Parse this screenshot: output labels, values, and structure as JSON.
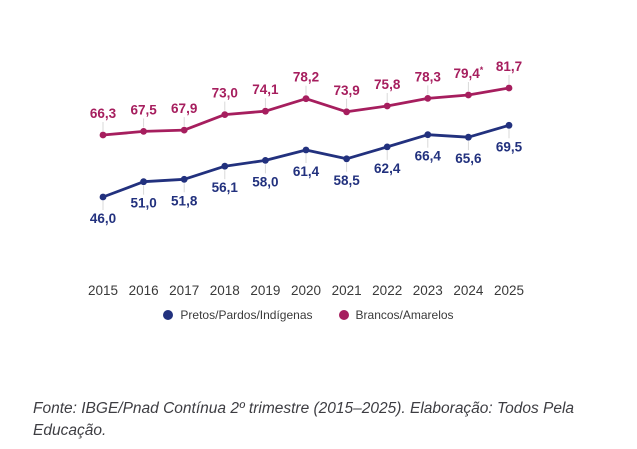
{
  "chart_data": {
    "type": "line",
    "categories": [
      "2015",
      "2016",
      "2017",
      "2018",
      "2019",
      "2020",
      "2021",
      "2022",
      "2023",
      "2024",
      "2025"
    ],
    "series": [
      {
        "name": "Pretos/Pardos/Indígenas",
        "color": "#22317E",
        "values": [
          46.0,
          51.0,
          51.8,
          56.1,
          58.0,
          61.4,
          58.5,
          62.4,
          66.4,
          65.6,
          69.5
        ],
        "labels": [
          "46,0",
          "51,0",
          "51,8",
          "56,1",
          "58,0",
          "61,4",
          "58,5",
          "62,4",
          "66,4",
          "65,6",
          "69,5"
        ],
        "label_position": "below"
      },
      {
        "name": "Brancos/Amarelos",
        "color": "#A61E5E",
        "values": [
          66.3,
          67.5,
          67.9,
          73.0,
          74.1,
          78.2,
          73.9,
          75.8,
          78.3,
          79.4,
          81.7
        ],
        "labels": [
          "66,3",
          "67,5",
          "67,9",
          "73,0",
          "74,1",
          "78,2",
          "73,9",
          "75,8",
          "78,3",
          "79,4*",
          "81,7"
        ],
        "label_position": "above"
      }
    ],
    "title": "",
    "xlabel": "",
    "ylabel": "",
    "grid": false,
    "legend_position": "bottom",
    "leader_tick_color": "#D9D9D9"
  },
  "footer": {
    "source": "Fonte: IBGE/Pnad Contínua 2º trimestre (2015–2025). Elaboração: Todos Pela Educação."
  }
}
